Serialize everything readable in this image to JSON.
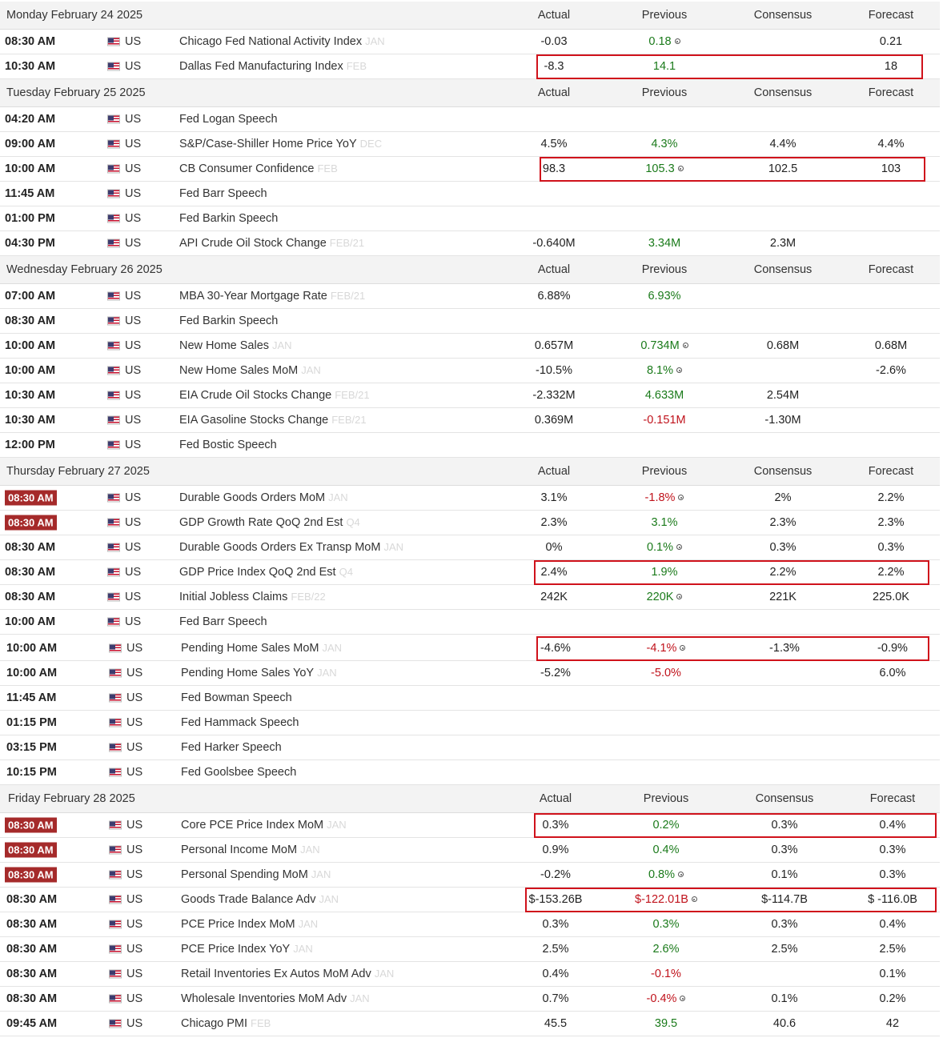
{
  "columns": {
    "actual": "Actual",
    "previous": "Previous",
    "consensus": "Consensus",
    "forecast": "Forecast"
  },
  "days": [
    {
      "title": "Monday February 24 2025",
      "rows": [
        {
          "time": "08:30 AM",
          "country": "US",
          "event": "Chicago Fed National Activity Index",
          "period": "JAN",
          "actual": "-0.03",
          "previous": "0.18",
          "prev_color": "green",
          "revised": true,
          "consensus": "",
          "forecast": "0.21"
        },
        {
          "time": "10:30 AM",
          "country": "US",
          "event": "Dallas Fed Manufacturing Index",
          "period": "FEB",
          "actual": "-8.3",
          "previous": "14.1",
          "prev_color": "green",
          "consensus": "",
          "forecast": "18"
        }
      ]
    },
    {
      "title": "Tuesday February 25 2025",
      "rows": [
        {
          "time": "04:20 AM",
          "country": "US",
          "event": "Fed Logan Speech",
          "period": "",
          "actual": "",
          "previous": "",
          "consensus": "",
          "forecast": ""
        },
        {
          "time": "09:00 AM",
          "country": "US",
          "event": "S&P/Case-Shiller Home Price YoY",
          "period": "DEC",
          "actual": "4.5%",
          "previous": "4.3%",
          "prev_color": "green",
          "consensus": "4.4%",
          "forecast": "4.4%"
        },
        {
          "time": "10:00 AM",
          "country": "US",
          "event": "CB Consumer Confidence",
          "period": "FEB",
          "actual": "98.3",
          "previous": "105.3",
          "prev_color": "green",
          "revised": true,
          "consensus": "102.5",
          "forecast": "103"
        },
        {
          "time": "11:45 AM",
          "country": "US",
          "event": "Fed Barr Speech",
          "period": "",
          "actual": "",
          "previous": "",
          "consensus": "",
          "forecast": ""
        },
        {
          "time": "01:00 PM",
          "country": "US",
          "event": "Fed Barkin Speech",
          "period": "",
          "actual": "",
          "previous": "",
          "consensus": "",
          "forecast": ""
        },
        {
          "time": "04:30 PM",
          "country": "US",
          "event": "API Crude Oil Stock Change",
          "period": "FEB/21",
          "actual": "-0.640M",
          "previous": "3.34M",
          "prev_color": "green",
          "consensus": "2.3M",
          "forecast": ""
        }
      ]
    },
    {
      "title": "Wednesday February 26 2025",
      "rows": [
        {
          "time": "07:00 AM",
          "country": "US",
          "event": "MBA 30-Year Mortgage Rate",
          "period": "FEB/21",
          "actual": "6.88%",
          "previous": "6.93%",
          "prev_color": "green",
          "consensus": "",
          "forecast": ""
        },
        {
          "time": "08:30 AM",
          "country": "US",
          "event": "Fed Barkin Speech",
          "period": "",
          "actual": "",
          "previous": "",
          "consensus": "",
          "forecast": ""
        },
        {
          "time": "10:00 AM",
          "country": "US",
          "event": "New Home Sales",
          "period": "JAN",
          "actual": "0.657M",
          "previous": "0.734M",
          "prev_color": "green",
          "revised": true,
          "consensus": "0.68M",
          "forecast": "0.68M"
        },
        {
          "time": "10:00 AM",
          "country": "US",
          "event": "New Home Sales MoM",
          "period": "JAN",
          "actual": "-10.5%",
          "previous": "8.1%",
          "prev_color": "green",
          "revised": true,
          "consensus": "",
          "forecast": "-2.6%"
        },
        {
          "time": "10:30 AM",
          "country": "US",
          "event": "EIA Crude Oil Stocks Change",
          "period": "FEB/21",
          "actual": "-2.332M",
          "previous": "4.633M",
          "prev_color": "green",
          "consensus": "2.54M",
          "forecast": ""
        },
        {
          "time": "10:30 AM",
          "country": "US",
          "event": "EIA Gasoline Stocks Change",
          "period": "FEB/21",
          "actual": "0.369M",
          "previous": "-0.151M",
          "prev_color": "red",
          "consensus": "-1.30M",
          "forecast": ""
        },
        {
          "time": "12:00 PM",
          "country": "US",
          "event": "Fed Bostic Speech",
          "period": "",
          "actual": "",
          "previous": "",
          "consensus": "",
          "forecast": ""
        }
      ]
    },
    {
      "title": "Thursday February 27 2025",
      "rows": [
        {
          "time": "08:30 AM",
          "hl": true,
          "country": "US",
          "event": "Durable Goods Orders MoM",
          "period": "JAN",
          "actual": "3.1%",
          "previous": "-1.8%",
          "prev_color": "red",
          "revised": true,
          "consensus": "2%",
          "forecast": "2.2%"
        },
        {
          "time": "08:30 AM",
          "hl": true,
          "country": "US",
          "event": "GDP Growth Rate QoQ 2nd Est",
          "period": "Q4",
          "actual": "2.3%",
          "previous": "3.1%",
          "prev_color": "green",
          "consensus": "2.3%",
          "forecast": "2.3%"
        },
        {
          "time": "08:30 AM",
          "country": "US",
          "event": "Durable Goods Orders Ex Transp MoM",
          "period": "JAN",
          "actual": "0%",
          "previous": "0.1%",
          "prev_color": "green",
          "revised": true,
          "consensus": "0.3%",
          "forecast": "0.3%"
        },
        {
          "time": "08:30 AM",
          "country": "US",
          "event": "GDP Price Index QoQ 2nd Est",
          "period": "Q4",
          "actual": "2.4%",
          "previous": "1.9%",
          "prev_color": "green",
          "consensus": "2.2%",
          "forecast": "2.2%"
        },
        {
          "time": "08:30 AM",
          "country": "US",
          "event": "Initial Jobless Claims",
          "period": "FEB/22",
          "actual": "242K",
          "previous": "220K",
          "prev_color": "green",
          "revised": true,
          "consensus": "221K",
          "forecast": "225.0K"
        },
        {
          "time": "10:00 AM",
          "country": "US",
          "event": "Fed Barr Speech",
          "period": "",
          "actual": "",
          "previous": "",
          "consensus": "",
          "forecast": ""
        },
        {
          "time": "10:00 AM",
          "country": "US",
          "event": "Pending Home Sales MoM",
          "period": "JAN",
          "actual": "-4.6%",
          "previous": "-4.1%",
          "prev_color": "red",
          "revised": true,
          "consensus": "-1.3%",
          "forecast": "-0.9%"
        },
        {
          "time": "10:00 AM",
          "country": "US",
          "event": "Pending Home Sales YoY",
          "period": "JAN",
          "actual": "-5.2%",
          "previous": "-5.0%",
          "prev_color": "red",
          "consensus": "",
          "forecast": "6.0%"
        },
        {
          "time": "11:45 AM",
          "country": "US",
          "event": "Fed Bowman Speech",
          "period": "",
          "actual": "",
          "previous": "",
          "consensus": "",
          "forecast": ""
        },
        {
          "time": "01:15 PM",
          "country": "US",
          "event": "Fed Hammack Speech",
          "period": "",
          "actual": "",
          "previous": "",
          "consensus": "",
          "forecast": ""
        },
        {
          "time": "03:15 PM",
          "country": "US",
          "event": "Fed Harker Speech",
          "period": "",
          "actual": "",
          "previous": "",
          "consensus": "",
          "forecast": ""
        },
        {
          "time": "10:15 PM",
          "country": "US",
          "event": "Fed Goolsbee Speech",
          "period": "",
          "actual": "",
          "previous": "",
          "consensus": "",
          "forecast": ""
        }
      ]
    },
    {
      "title": "Friday February 28 2025",
      "rows": [
        {
          "time": "08:30 AM",
          "hl": true,
          "country": "US",
          "event": "Core PCE Price Index MoM",
          "period": "JAN",
          "actual": "0.3%",
          "previous": "0.2%",
          "prev_color": "green",
          "consensus": "0.3%",
          "forecast": "0.4%"
        },
        {
          "time": "08:30 AM",
          "hl": true,
          "country": "US",
          "event": "Personal Income MoM",
          "period": "JAN",
          "actual": "0.9%",
          "previous": "0.4%",
          "prev_color": "green",
          "consensus": "0.3%",
          "forecast": "0.3%"
        },
        {
          "time": "08:30 AM",
          "hl": true,
          "country": "US",
          "event": "Personal Spending MoM",
          "period": "JAN",
          "actual": "-0.2%",
          "previous": "0.8%",
          "prev_color": "green",
          "revised": true,
          "consensus": "0.1%",
          "forecast": "0.3%"
        },
        {
          "time": "08:30 AM",
          "country": "US",
          "event": "Goods Trade Balance Adv",
          "period": "JAN",
          "actual": "$-153.26B",
          "previous": "$-122.01B",
          "prev_color": "red",
          "revised": true,
          "consensus": "$-114.7B",
          "forecast": "$ -116.0B"
        },
        {
          "time": "08:30 AM",
          "country": "US",
          "event": "PCE Price Index MoM",
          "period": "JAN",
          "actual": "0.3%",
          "previous": "0.3%",
          "prev_color": "green",
          "consensus": "0.3%",
          "forecast": "0.4%"
        },
        {
          "time": "08:30 AM",
          "country": "US",
          "event": "PCE Price Index YoY",
          "period": "JAN",
          "actual": "2.5%",
          "previous": "2.6%",
          "prev_color": "green",
          "consensus": "2.5%",
          "forecast": "2.5%"
        },
        {
          "time": "08:30 AM",
          "country": "US",
          "event": "Retail Inventories Ex Autos MoM Adv",
          "period": "JAN",
          "actual": "0.4%",
          "previous": "-0.1%",
          "prev_color": "red",
          "consensus": "",
          "forecast": "0.1%"
        },
        {
          "time": "08:30 AM",
          "country": "US",
          "event": "Wholesale Inventories MoM Adv",
          "period": "JAN",
          "actual": "0.7%",
          "previous": "-0.4%",
          "prev_color": "red",
          "revised": true,
          "consensus": "0.1%",
          "forecast": "0.2%"
        },
        {
          "time": "09:45 AM",
          "country": "US",
          "event": "Chicago PMI",
          "period": "FEB",
          "actual": "45.5",
          "previous": "39.5",
          "prev_color": "green",
          "consensus": "40.6",
          "forecast": "42"
        }
      ]
    }
  ],
  "annotation_color": "#d0121b"
}
